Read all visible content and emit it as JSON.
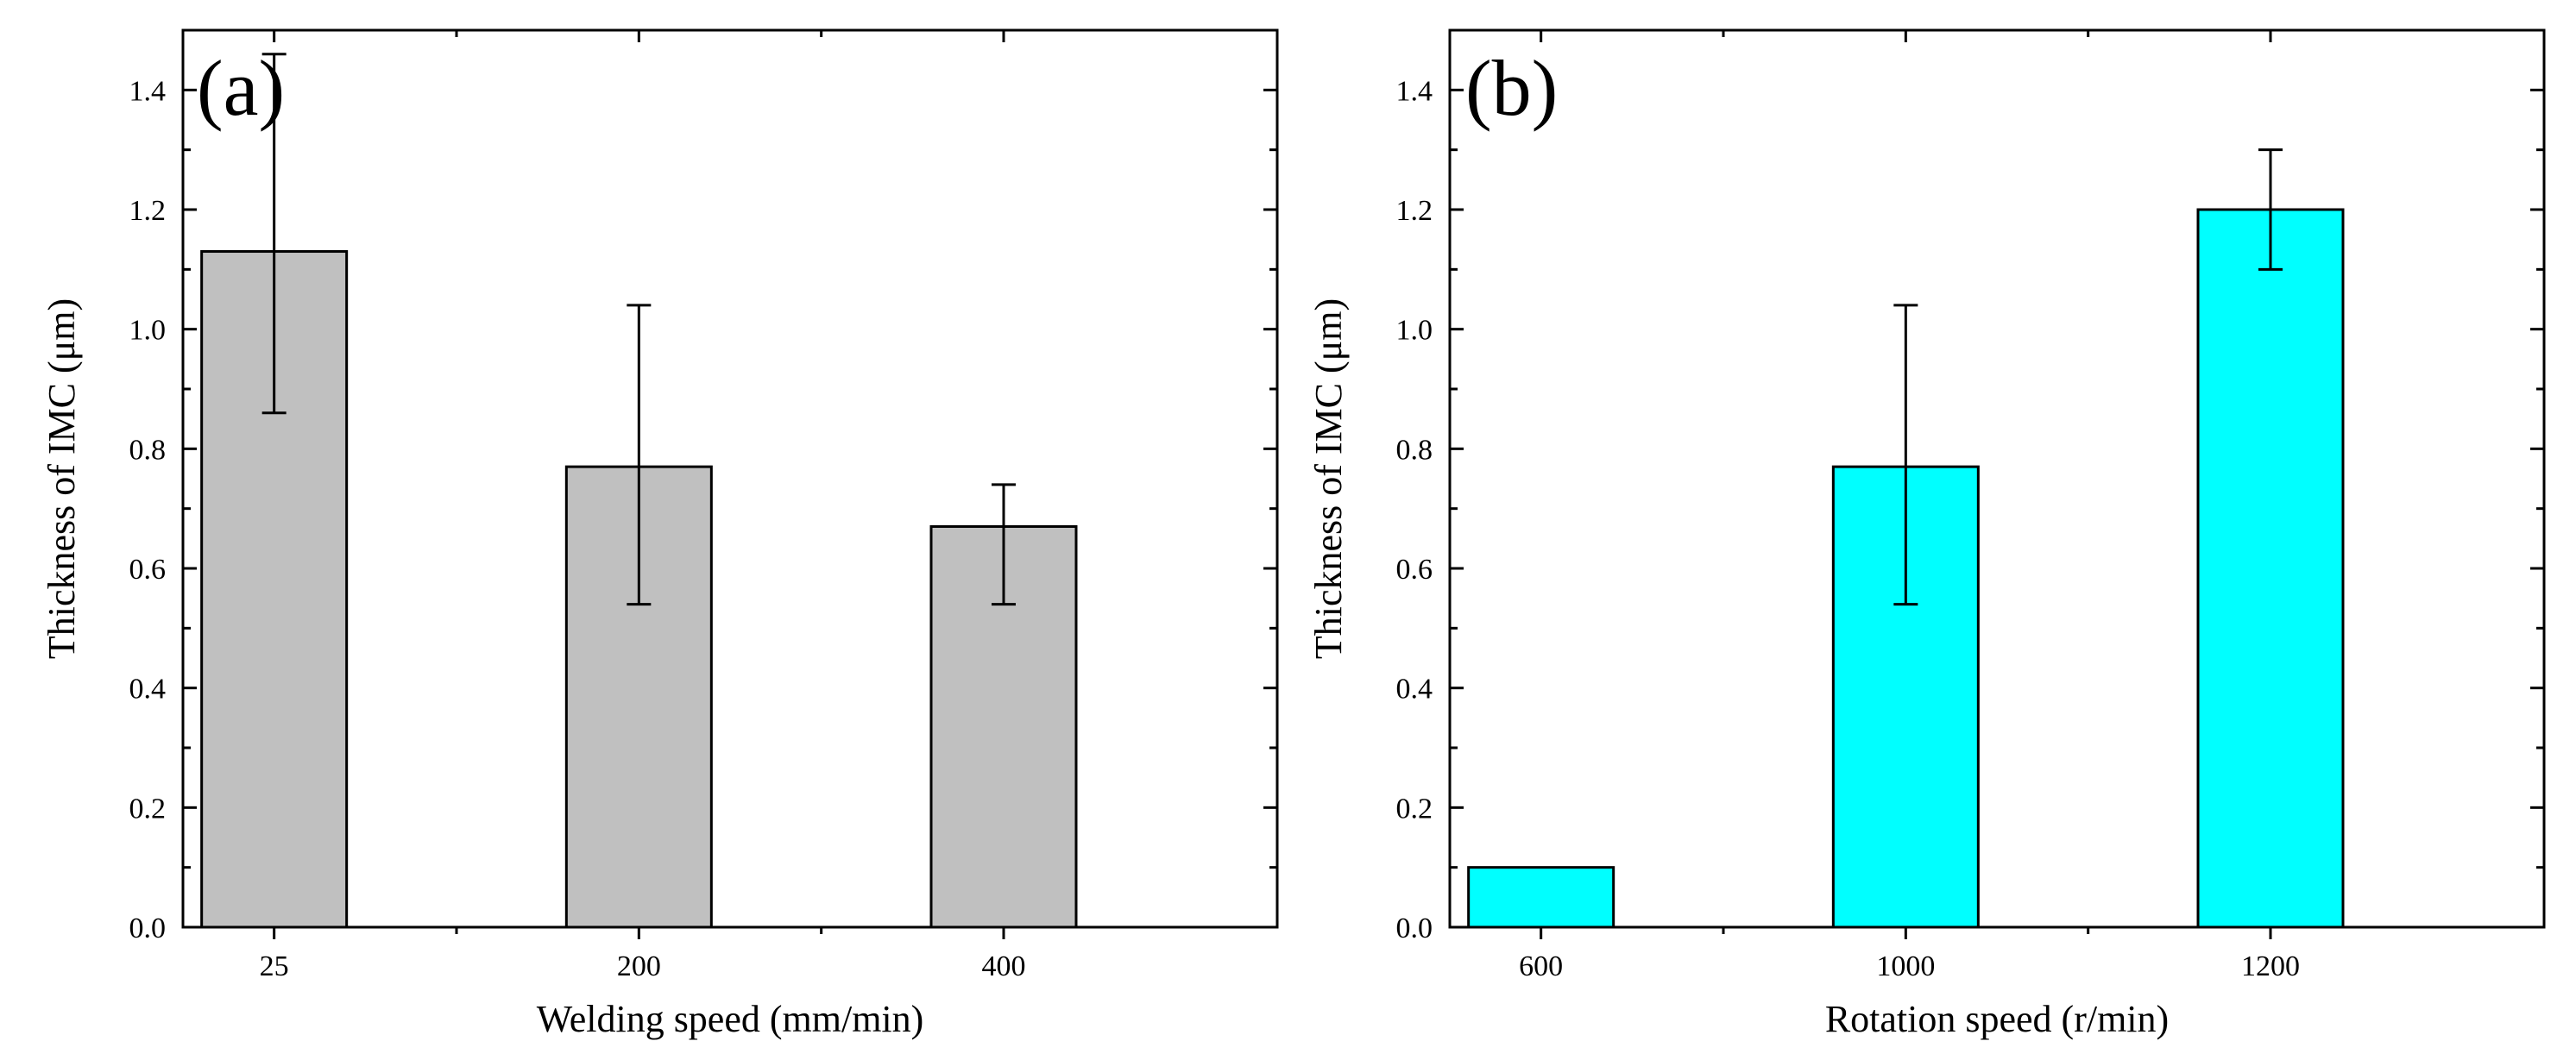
{
  "colors": {
    "panel_a_bar": "#c0c0c0",
    "panel_b_bar": "#00ffff",
    "axis": "#000000"
  },
  "chart_data": [
    {
      "type": "bar",
      "panel_label": "(a)",
      "categories": [
        "25",
        "200",
        "400"
      ],
      "values": [
        1.13,
        0.77,
        0.67
      ],
      "error_low": [
        0.86,
        0.54,
        0.54
      ],
      "error_high": [
        1.46,
        1.04,
        0.74
      ],
      "xlabel": "Welding speed (mm/min)",
      "ylabel": "Thickness of IMC (μm)",
      "ylim": [
        0,
        1.5
      ],
      "yticks": [
        "0.0",
        "0.2",
        "0.4",
        "0.6",
        "0.8",
        "1.0",
        "1.2",
        "1.4"
      ]
    },
    {
      "type": "bar",
      "panel_label": "(b)",
      "categories": [
        "600",
        "1000",
        "1200"
      ],
      "values": [
        0.1,
        0.77,
        1.2
      ],
      "error_low": [
        null,
        0.54,
        1.1
      ],
      "error_high": [
        null,
        1.04,
        1.3
      ],
      "xlabel": "Rotation speed (r/min)",
      "ylabel": "Thickness of IMC (μm)",
      "ylim": [
        0,
        1.5
      ],
      "yticks": [
        "0.0",
        "0.2",
        "0.4",
        "0.6",
        "0.8",
        "1.0",
        "1.2",
        "1.4"
      ]
    }
  ]
}
